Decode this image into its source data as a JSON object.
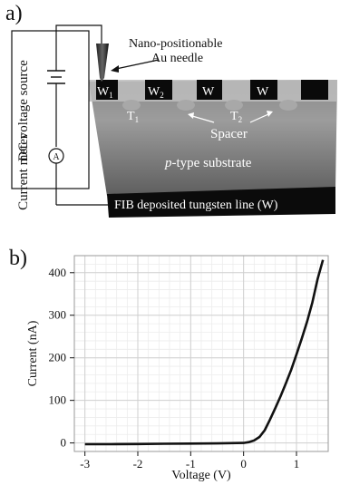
{
  "panel_a": {
    "label": "a)",
    "voltage_source_label": "DC voltage source",
    "current_meter_label": "Current meter",
    "meter_symbol": "A",
    "needle_label_line1": "Nano-positionable",
    "needle_label_line2": "Au needle",
    "electrodes": [
      "W",
      "1",
      "W",
      "2",
      "W",
      "W"
    ],
    "transistor_labels": [
      "T",
      "1",
      "T",
      "2"
    ],
    "spacer_label": "Spacer",
    "substrate_label_italic": "p",
    "substrate_label_rest": "-type substrate",
    "tungsten_line_label": "FIB deposited tungsten line  (W)"
  },
  "panel_b": {
    "label": "b)"
  },
  "chart_data": {
    "type": "line",
    "xlabel": "Voltage (V)",
    "ylabel": "Current (nA)",
    "xlim": [
      -3.2,
      1.6
    ],
    "ylim": [
      -20,
      440
    ],
    "xticks": [
      -3,
      -2,
      -1,
      0,
      1
    ],
    "yticks": [
      0,
      100,
      200,
      300,
      400
    ],
    "grid": true,
    "series": [
      {
        "x": [
          -3.0,
          -2.5,
          -2.0,
          -1.5,
          -1.0,
          -0.5,
          0.0,
          0.1,
          0.2,
          0.3,
          0.4,
          0.5,
          0.6,
          0.7,
          0.8,
          0.9,
          1.0,
          1.1,
          1.2,
          1.3,
          1.4,
          1.5
        ],
        "values": [
          -3,
          -3,
          -2.5,
          -2,
          -1.5,
          -1,
          0,
          2,
          6,
          14,
          30,
          55,
          82,
          110,
          140,
          172,
          208,
          245,
          285,
          330,
          385,
          430
        ]
      }
    ]
  }
}
